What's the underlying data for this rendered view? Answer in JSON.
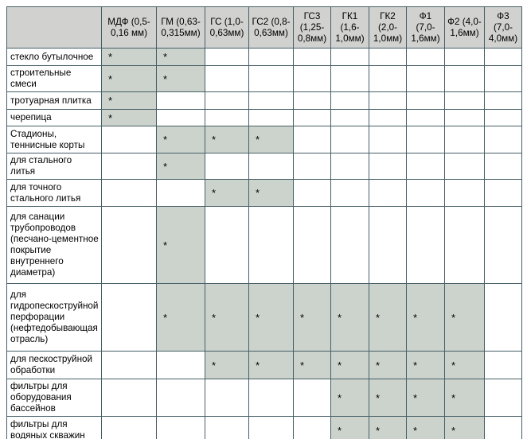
{
  "colors": {
    "header_bg": "#d1d1d0",
    "shaded_cell_bg": "#ccd3cc",
    "border": "#465f66",
    "text": "#000000"
  },
  "table": {
    "corner_label": "",
    "marker": "*",
    "column_headers": [
      "МДФ (0,5-0,16 мм)",
      "ГМ (0,63-0,315мм)",
      "ГС (1,0-0,63мм)",
      "ГС2 (0,8-0,63мм)",
      "ГС3 (1,25-0,8мм)",
      "ГК1 (1,6-1,0мм)",
      "ГК2 (2,0-1,0мм)",
      "Ф1 (7,0-1,6мм)",
      "Ф2 (4,0-1,6мм)",
      "Ф3 (7,0-4,0мм)"
    ],
    "rows": [
      {
        "label": "стекло бутылочное",
        "marks": [
          1,
          1,
          0,
          0,
          0,
          0,
          0,
          0,
          0,
          0
        ]
      },
      {
        "label": "строительные смеси",
        "marks": [
          1,
          1,
          0,
          0,
          0,
          0,
          0,
          0,
          0,
          0
        ]
      },
      {
        "label": "тротуарная плитка",
        "marks": [
          1,
          0,
          0,
          0,
          0,
          0,
          0,
          0,
          0,
          0
        ]
      },
      {
        "label": "черепица",
        "marks": [
          1,
          0,
          0,
          0,
          0,
          0,
          0,
          0,
          0,
          0
        ]
      },
      {
        "label": "Стадионы, теннисные корты",
        "marks": [
          0,
          1,
          1,
          1,
          0,
          0,
          0,
          0,
          0,
          0
        ]
      },
      {
        "label": "для стального литья",
        "marks": [
          0,
          1,
          0,
          0,
          0,
          0,
          0,
          0,
          0,
          0
        ]
      },
      {
        "label": "для точного стального литья",
        "marks": [
          0,
          0,
          1,
          1,
          0,
          0,
          0,
          0,
          0,
          0
        ]
      },
      {
        "label": "для санации трубопроводов (песчано-цементное покрытие внутреннего диаметра)",
        "marks": [
          0,
          1,
          0,
          0,
          0,
          0,
          0,
          0,
          0,
          0
        ]
      },
      {
        "label": "для гидропескоструйной перфорации (нефтедобывающая отрасль)",
        "marks": [
          0,
          1,
          1,
          1,
          1,
          1,
          1,
          1,
          1,
          0
        ]
      },
      {
        "label": "для пескоструйной обработки",
        "marks": [
          0,
          0,
          1,
          1,
          1,
          1,
          1,
          1,
          1,
          0
        ]
      },
      {
        "label": "фильтры для оборудования бассейнов",
        "marks": [
          0,
          0,
          0,
          0,
          0,
          1,
          1,
          1,
          1,
          0
        ]
      },
      {
        "label": "фильтры для водяных скважин",
        "marks": [
          0,
          0,
          0,
          0,
          0,
          1,
          1,
          1,
          1,
          0
        ]
      },
      {
        "label": "",
        "marks": [
          0,
          0,
          0,
          0,
          0,
          0,
          0,
          0,
          0,
          0
        ],
        "shaded": [
          0,
          0,
          1,
          1,
          1,
          1,
          1,
          1,
          1,
          0
        ],
        "partial_cut_off": true
      }
    ]
  }
}
